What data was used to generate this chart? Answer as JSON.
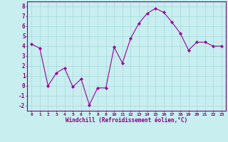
{
  "x": [
    0,
    1,
    2,
    3,
    4,
    5,
    6,
    7,
    8,
    9,
    10,
    11,
    12,
    13,
    14,
    15,
    16,
    17,
    18,
    19,
    20,
    21,
    22,
    23
  ],
  "y": [
    4.2,
    3.8,
    0.0,
    1.3,
    1.8,
    -0.1,
    0.7,
    -1.9,
    -0.2,
    -0.2,
    3.9,
    2.3,
    4.8,
    6.3,
    7.3,
    7.8,
    7.4,
    6.4,
    5.3,
    3.6,
    4.4,
    4.4,
    4.0,
    4.0
  ],
  "line_color": "#990099",
  "marker": "D",
  "marker_size": 2,
  "bg_color": "#c8eef0",
  "grid_color": "#aadddd",
  "xlabel": "Windchill (Refroidissement éolien,°C)",
  "xlabel_color": "#800080",
  "tick_color": "#800080",
  "xlim": [
    -0.5,
    23.5
  ],
  "ylim": [
    -2.5,
    8.5
  ],
  "yticks": [
    -2,
    -1,
    0,
    1,
    2,
    3,
    4,
    5,
    6,
    7,
    8
  ],
  "xticks": [
    0,
    1,
    2,
    3,
    4,
    5,
    6,
    7,
    8,
    9,
    10,
    11,
    12,
    13,
    14,
    15,
    16,
    17,
    18,
    19,
    20,
    21,
    22,
    23
  ]
}
